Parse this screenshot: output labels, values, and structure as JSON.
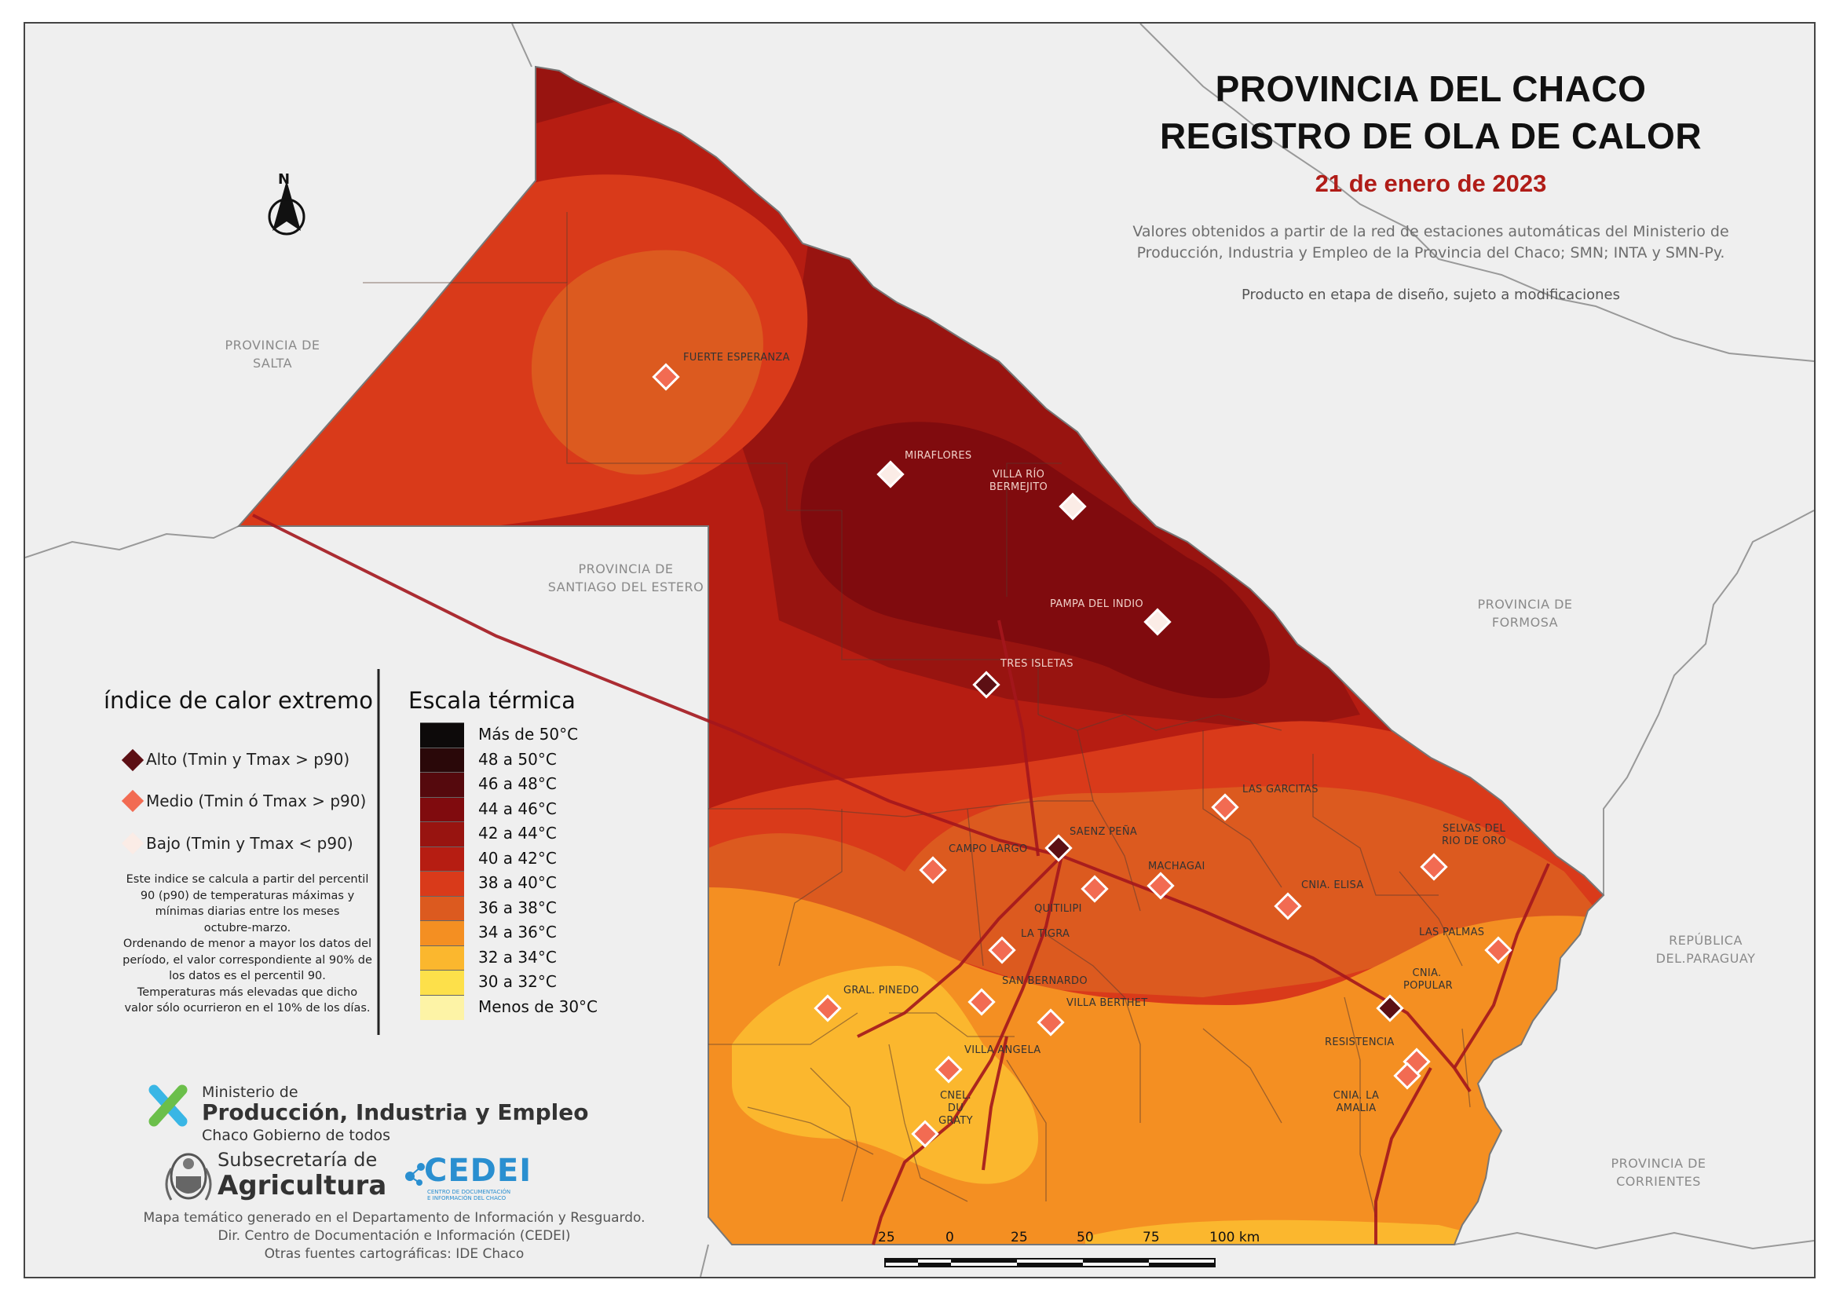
{
  "title": {
    "line1": "PROVINCIA DEL CHACO",
    "line2": "REGISTRO DE OLA DE CALOR",
    "date": "21 de enero de 2023"
  },
  "source_text": {
    "line1": "Valores obtenidos a partir de la red de estaciones automáticas del Ministerio de",
    "line2": "Producción, Industria y Empleo de la Provincia del Chaco; SMN; INTA y SMN-Py."
  },
  "draft_note": "Producto en etapa de diseño, sujeto a modificaciones",
  "north_label": "N",
  "regions": {
    "salta": [
      "PROVINCIA DE",
      "SALTA"
    ],
    "santiago": [
      "PROVINCIA DE",
      "SANTIAGO DEL ESTERO"
    ],
    "formosa": [
      "PROVINCIA DE",
      "FORMOSA"
    ],
    "paraguay": [
      "REPÚBLICA",
      "DEL.PARAGUAY"
    ],
    "corrientes": [
      "PROVINCIA DE",
      "CORRIENTES"
    ]
  },
  "cities": [
    {
      "name": "FUERTE ESPERANZA",
      "class": "medio"
    },
    {
      "name": "MIRAFLORES",
      "class": "bajo"
    },
    {
      "name": "VILLA RÍO BERMEJITO",
      "class": "bajo"
    },
    {
      "name": "PAMPA DEL INDIO",
      "class": "bajo"
    },
    {
      "name": "TRES ISLETAS",
      "class": "alto"
    },
    {
      "name": "LAS GARCITAS",
      "class": "medio"
    },
    {
      "name": "SAENZ PEÑA",
      "class": "alto"
    },
    {
      "name": "CAMPO LARGO",
      "class": "medio"
    },
    {
      "name": "MACHAGAI",
      "class": "medio"
    },
    {
      "name": "QUITILIPI",
      "class": "medio"
    },
    {
      "name": "CNIA. ELISA",
      "class": "medio"
    },
    {
      "name": "SELVAS DEL RIO DE ORO",
      "class": "medio"
    },
    {
      "name": "LA TIGRA",
      "class": "medio"
    },
    {
      "name": "LAS PALMAS",
      "class": "medio"
    },
    {
      "name": "SAN BERNARDO",
      "class": "medio"
    },
    {
      "name": "CNIA. POPULAR",
      "class": "alto"
    },
    {
      "name": "GRAL. PINEDO",
      "class": "medio"
    },
    {
      "name": "VILLA BERTHET",
      "class": "medio"
    },
    {
      "name": "VILLA ANGELA",
      "class": "medio"
    },
    {
      "name": "RESISTENCIA",
      "class": "medio"
    },
    {
      "name": "CNEL. DU GRATY",
      "class": "medio"
    },
    {
      "name": "CNIA. LA AMALIA",
      "class": "medio"
    }
  ],
  "legend_index": {
    "title": "índice de calor extremo",
    "items": [
      {
        "label": "Alto (Tmin y Tmax > p90)",
        "color": "#5c0f14"
      },
      {
        "label": "Medio (Tmin ó Tmax > p90)",
        "color": "#f26b52"
      },
      {
        "label": "Bajo (Tmin y Tmax < p90)",
        "color": "#fbece6"
      }
    ],
    "note": [
      "Este indice se calcula a partir del percentil",
      "90 (p90) de temperaturas máximas y",
      "mínimas diarias entre los meses",
      "octubre-marzo.",
      "Ordenando de menor a mayor los datos del",
      "período, el valor correspondiente al 90% de",
      "los datos es el percentil 90.",
      "Temperaturas más elevadas que dicho",
      "valor sólo ocurrieron en el 10% de los días."
    ]
  },
  "legend_scale": {
    "title": "Escala térmica",
    "items": [
      {
        "label": "Más de 50°C",
        "color": "#0d0a0a"
      },
      {
        "label": "48 a 50°C",
        "color": "#2a0809"
      },
      {
        "label": "46 a 48°C",
        "color": "#55090d"
      },
      {
        "label": "44 a 46°C",
        "color": "#800b0e"
      },
      {
        "label": "42 a 44°C",
        "color": "#981410"
      },
      {
        "label": "40 a 42°C",
        "color": "#b61d12"
      },
      {
        "label": "38 a 40°C",
        "color": "#d93a1a"
      },
      {
        "label": "36 a 38°C",
        "color": "#dc5a1f"
      },
      {
        "label": "34 a 36°C",
        "color": "#f48f22"
      },
      {
        "label": "32 a 34°C",
        "color": "#fbb72e"
      },
      {
        "label": "30 a 32°C",
        "color": "#fde04a"
      },
      {
        "label": "Menos de 30°C",
        "color": "#fdf3a6"
      }
    ]
  },
  "logos": {
    "ministry_pre": "Ministerio de",
    "ministry_name": "Producción, Industria y Empleo",
    "ministry_sub": "Chaco Gobierno de todos",
    "agri_pre": "Subsecretaría de",
    "agri_name": "Agricultura",
    "cedei_name": "CEDEI",
    "cedei_sub1": "CENTRO DE DOCUMENTACIÓN",
    "cedei_sub2": "E INFORMACIÓN DEL CHACO"
  },
  "credits": [
    "Mapa temático generado en el Departamento de Información y Resguardo.",
    "Dir. Centro de Documentación e Información (CEDEI)",
    "Otras fuentes cartográficas: IDE Chaco"
  ],
  "scale_bar": {
    "labels": [
      "25",
      "0",
      "25",
      "50",
      "75",
      "100 km"
    ]
  },
  "colors": {
    "alto": "#5c0f14",
    "medio": "#f26b52",
    "bajo": "#fbece6"
  }
}
